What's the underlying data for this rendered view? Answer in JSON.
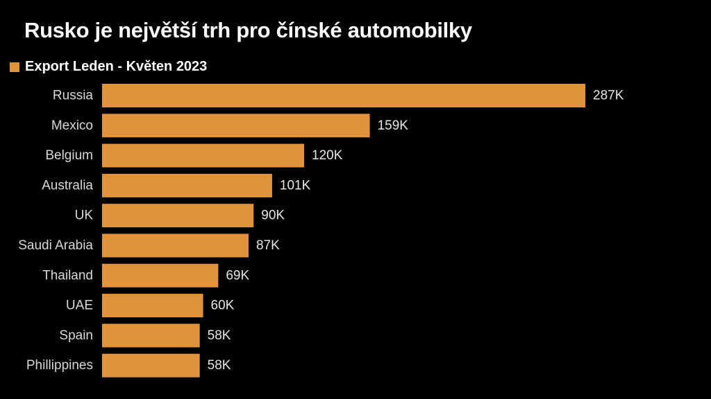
{
  "header": {
    "title": "Rusko je největší trh pro čínské automobilky"
  },
  "legend": {
    "label": "Export Leden - Květen 2023",
    "color": "#e09338"
  },
  "chart_data": {
    "type": "bar",
    "orientation": "horizontal",
    "title": "Rusko je největší trh pro čínské automobilky",
    "categories": [
      "Russia",
      "Mexico",
      "Belgium",
      "Australia",
      "UK",
      "Saudi Arabia",
      "Thailand",
      "UAE",
      "Spain",
      "Phillippines"
    ],
    "series": [
      {
        "name": "Export Leden - Květen 2023",
        "values": [
          287000,
          159000,
          120000,
          101000,
          90000,
          87000,
          69000,
          60000,
          58000,
          58000
        ],
        "data_labels": [
          "287K",
          "159K",
          "120K",
          "101K",
          "90K",
          "87K",
          "69K",
          "60K",
          "58K",
          "58K"
        ],
        "color": "#e09338"
      }
    ],
    "xlim": [
      0,
      287000
    ],
    "grid": false,
    "legend_position": "top-left"
  }
}
